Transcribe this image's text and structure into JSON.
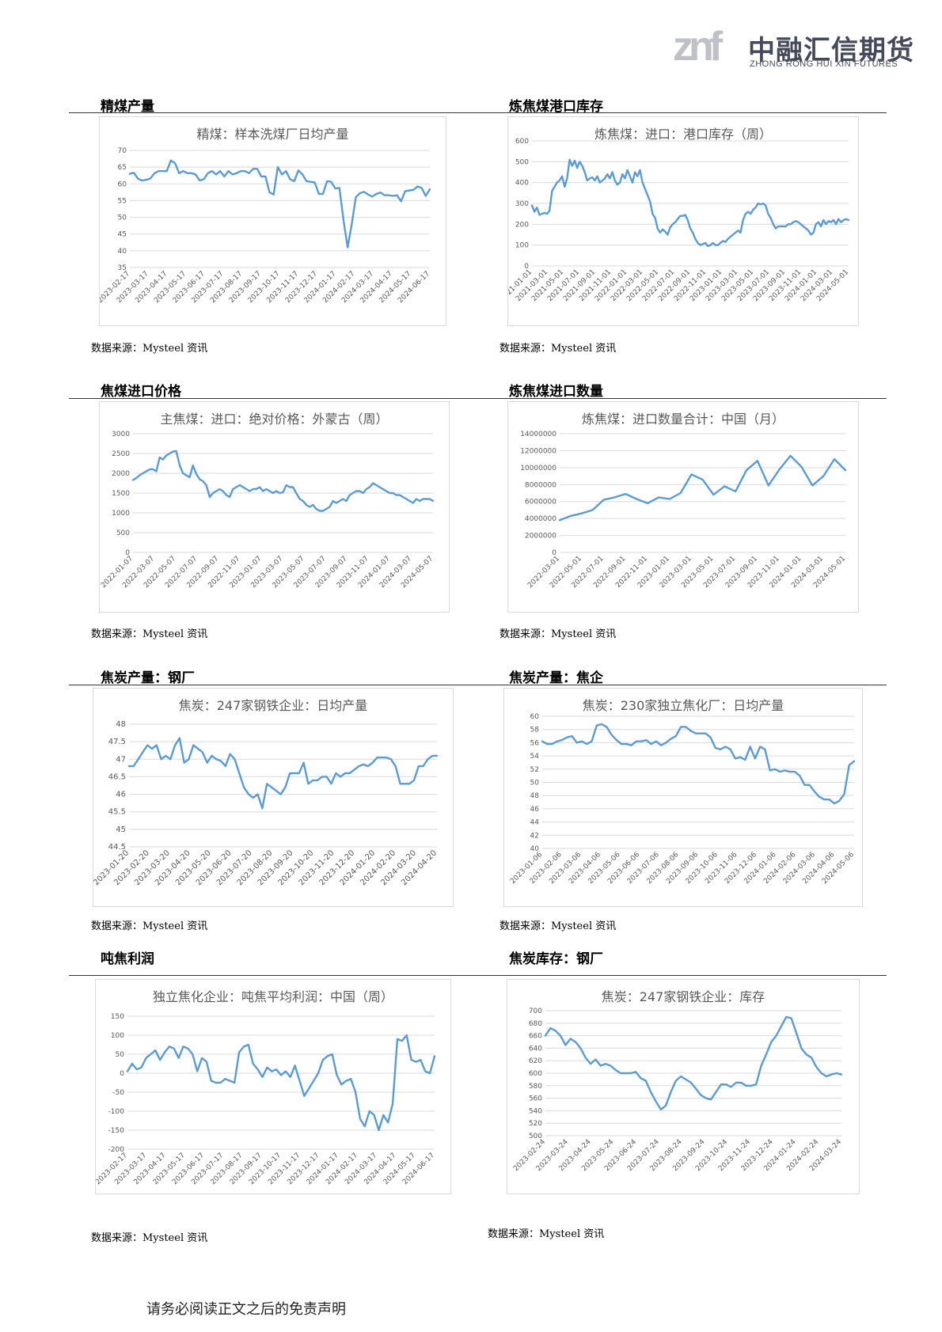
{
  "header": {
    "logo_mark": "znf",
    "logo_cn": "中融汇信期货",
    "logo_en": "ZHONG RONG HUI XIN FUTURES"
  },
  "colors": {
    "series": "#5b9bd5",
    "grid": "#d9d9d9",
    "axis_text": "#595959"
  },
  "footer": {
    "disclaimer": "请务必阅读正文之后的免责声明"
  },
  "sections": [
    {
      "title": "精煤产量",
      "source": "数据来源：Mysteel 资讯"
    },
    {
      "title": "炼焦煤港口库存",
      "source": "数据来源：Mysteel 资讯"
    },
    {
      "title": "焦煤进口价格",
      "source": "数据来源：Mysteel 资讯"
    },
    {
      "title": "炼焦煤进口数量",
      "source": "数据来源：Mysteel 资讯"
    },
    {
      "title": "焦炭产量：钢厂",
      "source": "数据来源：Mysteel 资讯"
    },
    {
      "title": "焦炭产量：焦企",
      "source": "数据来源：Mysteel 资讯"
    },
    {
      "title": "吨焦利润",
      "source": "数据来源：Mysteel 资讯"
    },
    {
      "title": "焦炭库存：钢厂",
      "source": "数据来源：Mysteel 资讯"
    }
  ],
  "chart_data": [
    {
      "type": "line",
      "title": "精煤：样本洗煤厂日均产量",
      "ylim": [
        35,
        70
      ],
      "yticks": [
        35,
        40,
        45,
        50,
        55,
        60,
        65,
        70
      ],
      "x_tick_labels": [
        "2023-02-17",
        "2023-03-17",
        "2023-04-17",
        "2023-05-17",
        "2023-06-17",
        "2023-07-17",
        "2023-08-17",
        "2023-09-17",
        "2023-10-17",
        "2023-11-17",
        "2023-12-17",
        "2024-01-17",
        "2024-02-17",
        "2024-03-17",
        "2024-04-17",
        "2024-05-17",
        "2024-06-17"
      ],
      "grid": true,
      "values": [
        63,
        63.3,
        61.5,
        61,
        61.2,
        61.6,
        63.2,
        63.8,
        63.8,
        63.8,
        67,
        66.2,
        63.2,
        63.8,
        63.2,
        63.2,
        62.8,
        61,
        61.4,
        63.2,
        63.8,
        62.8,
        63.8,
        62.2,
        63.8,
        62.8,
        63.2,
        63.8,
        63.8,
        63.2,
        64.5,
        64.5,
        62.2,
        62.2,
        57.5,
        56.8,
        65,
        62.8,
        63.8,
        61.4,
        60.8,
        64,
        62.8,
        60.8,
        60.6,
        60.4,
        57,
        57,
        60.8,
        60.6,
        58.6,
        58.8,
        49,
        41,
        48,
        56,
        57.2,
        57.6,
        56.8,
        56.2,
        57,
        57.4,
        56.6,
        56.6,
        56.4,
        56.6,
        54.8,
        57.8,
        58,
        58.2,
        59.2,
        58.8,
        56.4,
        58.4
      ]
    },
    {
      "type": "line",
      "title": "炼焦煤：进口：港口库存（周）",
      "ylim": [
        0,
        600
      ],
      "yticks": [
        0,
        100,
        200,
        300,
        400,
        500,
        600
      ],
      "x_tick_labels": [
        "2021-01-01",
        "2021-03-01",
        "2021-05-01",
        "2021-07-01",
        "2021-09-01",
        "2021-11-01",
        "2022-01-01",
        "2022-03-01",
        "2022-05-01",
        "2022-07-01",
        "2022-09-01",
        "2022-11-01",
        "2023-01-01",
        "2023-03-01",
        "2023-05-01",
        "2023-07-01",
        "2023-09-01",
        "2023-11-01",
        "2024-01-01",
        "2024-03-01",
        "2024-05-01"
      ],
      "grid": true,
      "values": [
        290,
        260,
        280,
        245,
        250,
        255,
        250,
        265,
        360,
        380,
        400,
        410,
        430,
        380,
        420,
        510,
        480,
        505,
        470,
        500,
        480,
        450,
        410,
        420,
        425,
        410,
        430,
        400,
        410,
        420,
        440,
        420,
        450,
        410,
        390,
        400,
        440,
        420,
        460,
        430,
        400,
        450,
        430,
        460,
        400,
        370,
        340,
        310,
        250,
        230,
        180,
        160,
        175,
        165,
        150,
        185,
        200,
        210,
        225,
        240,
        240,
        245,
        220,
        180,
        160,
        130,
        110,
        100,
        105,
        110,
        95,
        100,
        110,
        100,
        100,
        110,
        120,
        115,
        130,
        140,
        150,
        160,
        170,
        160,
        220,
        250,
        260,
        250,
        270,
        280,
        300,
        295,
        300,
        290,
        250,
        230,
        200,
        180,
        190,
        190,
        190,
        190,
        200,
        200,
        210,
        215,
        210,
        200,
        190,
        180,
        170,
        150,
        160,
        200,
        210,
        190,
        220,
        200,
        215,
        210,
        220,
        200,
        225,
        210,
        220,
        225,
        220
      ]
    },
    {
      "type": "line",
      "title": "主焦煤：进口：绝对价格：外蒙古（周）",
      "ylim": [
        0,
        3000
      ],
      "yticks": [
        0,
        500,
        1000,
        1500,
        2000,
        2500,
        3000
      ],
      "x_tick_labels": [
        "2022-01-07",
        "2022-03-07",
        "2022-05-07",
        "2022-07-07",
        "2022-09-07",
        "2022-11-07",
        "2023-01-07",
        "2023-03-07",
        "2023-05-07",
        "2023-07-07",
        "2023-09-07",
        "2023-11-07",
        "2024-01-07",
        "2024-03-07",
        "2024-05-07"
      ],
      "grid": true,
      "values": [
        1830,
        1880,
        1950,
        2000,
        2050,
        2100,
        2100,
        2050,
        2400,
        2350,
        2450,
        2500,
        2550,
        2560,
        2200,
        2000,
        1950,
        1900,
        2200,
        1980,
        1850,
        1800,
        1700,
        1400,
        1500,
        1550,
        1600,
        1550,
        1450,
        1400,
        1600,
        1650,
        1700,
        1650,
        1600,
        1550,
        1600,
        1600,
        1650,
        1550,
        1600,
        1550,
        1500,
        1550,
        1500,
        1520,
        1700,
        1650,
        1650,
        1500,
        1350,
        1300,
        1200,
        1150,
        1200,
        1100,
        1050,
        1050,
        1100,
        1150,
        1300,
        1250,
        1300,
        1350,
        1300,
        1450,
        1500,
        1550,
        1550,
        1500,
        1600,
        1650,
        1750,
        1700,
        1650,
        1600,
        1550,
        1500,
        1500,
        1450,
        1450,
        1400,
        1350,
        1300,
        1250,
        1350,
        1300,
        1350,
        1350,
        1350,
        1300
      ]
    },
    {
      "type": "line",
      "title": "炼焦煤：进口数量合计：中国（月）",
      "ylim": [
        0,
        14000000
      ],
      "yticks": [
        0,
        2000000,
        4000000,
        6000000,
        8000000,
        10000000,
        12000000,
        14000000
      ],
      "x_tick_labels": [
        "2022-03-01",
        "2022-05-01",
        "2022-07-01",
        "2022-09-01",
        "2022-11-01",
        "2023-01-01",
        "2023-03-01",
        "2023-05-01",
        "2023-07-01",
        "2023-09-01",
        "2023-11-01",
        "2024-01-01",
        "2024-03-01",
        "2024-05-01"
      ],
      "grid": true,
      "values": [
        3800000,
        4300000,
        4600000,
        5000000,
        6200000,
        6500000,
        6900000,
        6300000,
        5800000,
        6500000,
        6300000,
        7000000,
        9200000,
        8600000,
        6800000,
        7800000,
        7200000,
        9700000,
        10800000,
        7900000,
        9800000,
        11400000,
        10100000,
        7900000,
        9000000,
        11000000,
        9700000
      ]
    },
    {
      "type": "line",
      "title": "焦炭：247家钢铁企业：日均产量",
      "ylim": [
        44.5,
        48
      ],
      "yticks": [
        44.5,
        45,
        45.5,
        46,
        46.5,
        47,
        47.5,
        48
      ],
      "x_tick_labels": [
        "2023-01-20",
        "2023-02-20",
        "2023-03-20",
        "2023-04-20",
        "2023-05-20",
        "2023-06-20",
        "2023-07-20",
        "2023-08-20",
        "2023-09-20",
        "2023-10-20",
        "2023-11-20",
        "2023-12-20",
        "2024-01-20",
        "2024-02-20",
        "2024-03-20",
        "2024-04-20"
      ],
      "grid": true,
      "values": [
        46.8,
        46.8,
        47,
        47.2,
        47.4,
        47.3,
        47.4,
        47,
        47.1,
        47,
        47.4,
        47.6,
        46.9,
        47,
        47.4,
        47.3,
        47.2,
        46.9,
        47.1,
        47,
        46.95,
        46.8,
        47.15,
        47,
        46.6,
        46.2,
        46,
        45.9,
        46,
        45.6,
        46.3,
        46.2,
        46.1,
        46,
        46.2,
        46.6,
        46.6,
        46.6,
        46.9,
        46.3,
        46.4,
        46.4,
        46.5,
        46.5,
        46.3,
        46.6,
        46.5,
        46.6,
        46.6,
        46.7,
        46.8,
        46.85,
        46.8,
        46.9,
        47.05,
        47.05,
        47.05,
        47.0,
        46.8,
        46.3,
        46.3,
        46.3,
        46.4,
        46.8,
        46.8,
        47.0,
        47.1,
        47.1
      ]
    },
    {
      "type": "line",
      "title": "焦炭：230家独立焦化厂：日均产量",
      "ylim": [
        40,
        60
      ],
      "yticks": [
        40,
        42,
        44,
        46,
        48,
        50,
        52,
        54,
        56,
        58,
        60
      ],
      "x_tick_labels": [
        "2023-01-06",
        "2023-02-06",
        "2023-03-06",
        "2023-04-06",
        "2023-05-06",
        "2023-06-06",
        "2023-07-06",
        "2023-08-06",
        "2023-09-06",
        "2023-10-06",
        "2023-11-06",
        "2023-12-06",
        "2024-01-06",
        "2024-02-06",
        "2024-03-06",
        "2024-04-06",
        "2024-05-06"
      ],
      "grid": true,
      "values": [
        56.2,
        55.8,
        55.8,
        56.2,
        56.4,
        56.8,
        57,
        56,
        56.2,
        55.8,
        56.2,
        58.6,
        58.8,
        58.4,
        57.2,
        56.4,
        55.8,
        55.8,
        55.6,
        56.2,
        56.2,
        56.4,
        55.8,
        56.2,
        55.6,
        56,
        56.6,
        57,
        58.4,
        58.4,
        57.8,
        57.4,
        57.4,
        57.4,
        56.8,
        55.2,
        55,
        55.4,
        55,
        53.6,
        53.8,
        53.4,
        55.4,
        53.6,
        55.4,
        55,
        51.8,
        52,
        51.6,
        51.8,
        51.6,
        51.6,
        51,
        49.6,
        49.6,
        48.6,
        47.8,
        47.4,
        47.4,
        46.8,
        47.2,
        48.2,
        52.6,
        53.2
      ]
    },
    {
      "type": "line",
      "title": "独立焦化企业：吨焦平均利润：中国（周）",
      "ylim": [
        -200,
        150
      ],
      "yticks": [
        -200,
        -150,
        -100,
        -50,
        0,
        50,
        100,
        150
      ],
      "x_tick_labels": [
        "2023-02-17",
        "2023-03-17",
        "2023-04-17",
        "2023-05-17",
        "2023-06-17",
        "2023-07-17",
        "2023-08-17",
        "2023-09-17",
        "2023-10-17",
        "2023-11-17",
        "2023-12-17",
        "2024-01-17",
        "2024-02-17",
        "2024-03-17",
        "2024-04-17",
        "2024-05-17",
        "2024-06-17"
      ],
      "grid": true,
      "values": [
        5,
        25,
        10,
        15,
        40,
        50,
        60,
        35,
        55,
        70,
        65,
        40,
        70,
        65,
        50,
        5,
        40,
        30,
        -20,
        -25,
        -25,
        -15,
        -20,
        -25,
        55,
        70,
        75,
        25,
        10,
        -10,
        15,
        5,
        10,
        -5,
        5,
        -10,
        20,
        -20,
        -60,
        -40,
        -20,
        0,
        35,
        45,
        50,
        -5,
        -30,
        -20,
        -15,
        -50,
        -120,
        -140,
        -100,
        -110,
        -150,
        -110,
        -130,
        -80,
        90,
        85,
        100,
        35,
        30,
        35,
        5,
        0,
        45
      ]
    },
    {
      "type": "line",
      "title": "焦炭：247家钢铁企业：库存",
      "ylim": [
        500,
        700
      ],
      "yticks": [
        500,
        520,
        540,
        560,
        580,
        600,
        620,
        640,
        660,
        680,
        700
      ],
      "x_tick_labels": [
        "2023-02-24",
        "2023-03-24",
        "2023-04-24",
        "2023-05-24",
        "2023-06-24",
        "2023-07-24",
        "2023-08-24",
        "2023-09-24",
        "2023-10-24",
        "2023-11-24",
        "2023-12-24",
        "2024-01-24",
        "2024-02-24",
        "2024-03-24"
      ],
      "grid": true,
      "values": [
        660,
        672,
        668,
        660,
        645,
        655,
        650,
        640,
        625,
        615,
        622,
        612,
        615,
        612,
        605,
        600,
        600,
        600,
        602,
        592,
        588,
        570,
        555,
        542,
        548,
        570,
        588,
        595,
        590,
        585,
        575,
        565,
        560,
        558,
        570,
        582,
        582,
        578,
        585,
        585,
        580,
        580,
        582,
        612,
        630,
        650,
        660,
        675,
        690,
        688,
        665,
        640,
        630,
        625,
        610,
        600,
        595,
        598,
        600,
        598
      ]
    }
  ]
}
